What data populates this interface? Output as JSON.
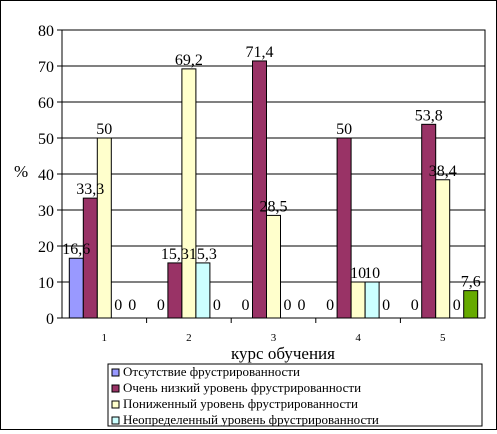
{
  "chart_data": {
    "type": "bar",
    "title": "",
    "xlabel": "курс обучения",
    "ylabel": "%",
    "ylim": [
      0,
      80
    ],
    "yticks": [
      0,
      10,
      20,
      30,
      40,
      50,
      60,
      70,
      80
    ],
    "grid": true,
    "categories": [
      "1",
      "2",
      "3",
      "4",
      "5"
    ],
    "series": [
      {
        "name": "Отсутствие фрустрированности",
        "color": "#9999ff",
        "values": [
          16.6,
          0,
          0,
          0,
          0
        ],
        "labels": [
          "16,6",
          "0",
          "0",
          "0",
          "0"
        ]
      },
      {
        "name": "Очень низкий уровень фрустрированности",
        "color": "#993366",
        "values": [
          33.3,
          15.3,
          71.4,
          50,
          53.8
        ],
        "labels": [
          "33,3",
          "15,3",
          "71,4",
          "50",
          "53,8"
        ]
      },
      {
        "name": "Пониженный уровень фрустрированности",
        "color": "#ffffcc",
        "values": [
          50,
          69.2,
          28.5,
          10,
          38.4
        ],
        "labels": [
          "50",
          "69,2",
          "28,5",
          "10",
          "38,4"
        ]
      },
      {
        "name": "Неопределенный уровень фрустрированности",
        "color": "#ccffff",
        "values": [
          0,
          15.3,
          0,
          10,
          0
        ],
        "labels": [
          "0",
          "15,3",
          "0",
          "10",
          "0"
        ]
      },
      {
        "name": "",
        "color": "#66aa00",
        "values": [
          0,
          0,
          0,
          0,
          7.6
        ],
        "labels": [
          "0",
          "0",
          "0",
          "0",
          "7,6"
        ]
      }
    ],
    "legend_position": "bottom"
  }
}
